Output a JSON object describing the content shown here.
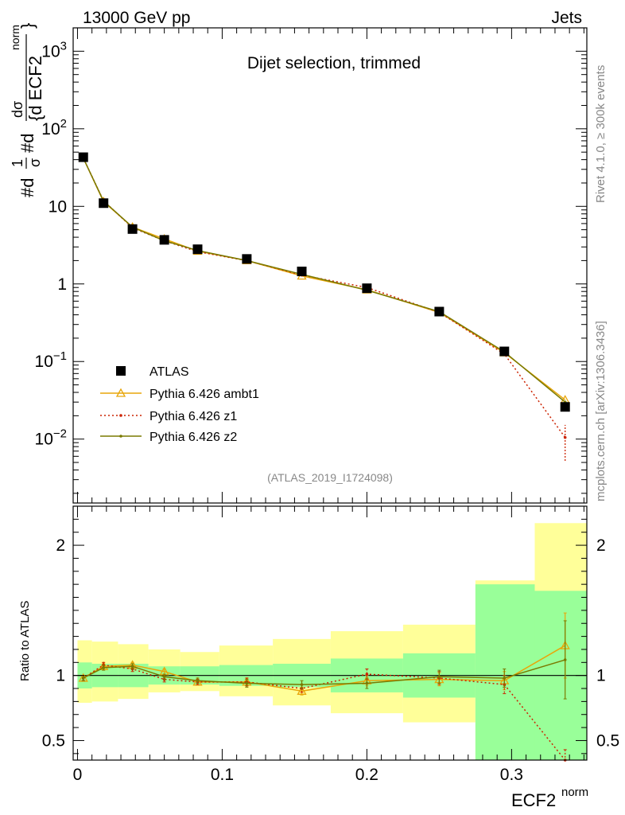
{
  "colors": {
    "atlas": "#000000",
    "ambt1": "#e8a60a",
    "z1": "#cc2200",
    "z2": "#7a7a00",
    "band_inner": "#99ff99",
    "band_outer": "#ffff99",
    "meta_text": "#888888"
  },
  "header": {
    "energy": "13000 GeV pp",
    "category": "Jets"
  },
  "side": {
    "rivet": "Rivet 4.1.0, ≥ 300k events",
    "mcplots": "mcplots.cern.ch [arXiv:1306.3436]"
  },
  "chart_data": [
    {
      "type": "line",
      "yscale": "log",
      "title": "Dijet selection, trimmed",
      "ylabel": "#d1/σ #dσ/{d ECF2norm}",
      "ylabel_parts": {
        "num_prefix": "#d",
        "one": "1",
        "sigma": "σ",
        "d_part": "#d",
        "dsigma": "dσ",
        "denom": "{d ECF2",
        "sup": "norm",
        "close": "}"
      },
      "analysis_id": "(ATLAS_2019_I1724098)",
      "ylim": [
        0.0015,
        2000
      ],
      "ytick_labels": [
        "10-2",
        "10-1",
        "1",
        "10",
        "102",
        "103"
      ],
      "ytick_label_parts": [
        {
          "base": "10",
          "exp": "−2"
        },
        {
          "base": "10",
          "exp": "−1"
        },
        {
          "base": "1",
          "exp": ""
        },
        {
          "base": "10",
          "exp": ""
        },
        {
          "base": "10",
          "exp": "2"
        },
        {
          "base": "10",
          "exp": "3"
        }
      ],
      "x": [
        0.004,
        0.018,
        0.038,
        0.06,
        0.083,
        0.117,
        0.155,
        0.2,
        0.25,
        0.295,
        0.337
      ],
      "legend": [
        "ATLAS",
        "Pythia 6.426 ambt1",
        "Pythia 6.426 z1",
        "Pythia 6.426 z2"
      ],
      "series": [
        {
          "name": "ATLAS",
          "values": [
            43,
            11,
            5.1,
            3.7,
            2.8,
            2.1,
            1.45,
            0.88,
            0.44,
            0.135,
            0.026
          ]
        },
        {
          "name": "Pythia 6.426 ambt1",
          "values": [
            42,
            11.5,
            5.4,
            3.8,
            2.65,
            2.0,
            1.27,
            0.84,
            0.43,
            0.13,
            0.032
          ]
        },
        {
          "name": "Pythia 6.426 z1",
          "values": [
            42,
            11.8,
            5.3,
            3.6,
            2.6,
            2.0,
            1.3,
            0.9,
            0.43,
            0.125,
            0.0105
          ]
        },
        {
          "name": "Pythia 6.426 z2",
          "values": [
            42,
            11.7,
            5.4,
            3.6,
            2.7,
            2.0,
            1.33,
            0.83,
            0.44,
            0.133,
            0.03
          ]
        }
      ]
    },
    {
      "type": "line",
      "ylabel": "Ratio to ATLAS",
      "xlabel": "ECF2norm",
      "xlabel_parts": {
        "base": "ECF2",
        "sup": "norm"
      },
      "xlim": [
        -0.003,
        0.352
      ],
      "ylim": [
        0.35,
        2.3
      ],
      "xticks": [
        0,
        0.1,
        0.2,
        0.3
      ],
      "xtick_labels": [
        "0",
        "0.1",
        "0.2",
        "0.3"
      ],
      "yticks": [
        0.5,
        1,
        2
      ],
      "ytick_labels": [
        "0.5",
        "1",
        "2"
      ],
      "bins": [
        0,
        0.01,
        0.028,
        0.049,
        0.071,
        0.098,
        0.135,
        0.175,
        0.225,
        0.275,
        0.316,
        0.352
      ],
      "band_inner": [
        [
          0.9,
          1.1
        ],
        [
          0.91,
          1.09
        ],
        [
          0.91,
          1.09
        ],
        [
          0.93,
          1.07
        ],
        [
          0.93,
          1.07
        ],
        [
          0.92,
          1.08
        ],
        [
          0.91,
          1.09
        ],
        [
          0.87,
          1.13
        ],
        [
          0.83,
          1.17
        ],
        [
          0.3,
          1.7
        ],
        [
          0.3,
          1.65
        ]
      ],
      "band_outer": [
        [
          0.79,
          1.27
        ],
        [
          0.8,
          1.26
        ],
        [
          0.82,
          1.24
        ],
        [
          0.87,
          1.2
        ],
        [
          0.88,
          1.18
        ],
        [
          0.84,
          1.23
        ],
        [
          0.77,
          1.28
        ],
        [
          0.71,
          1.34
        ],
        [
          0.64,
          1.39
        ],
        [
          0.3,
          1.73
        ],
        [
          0.3,
          2.17
        ]
      ],
      "x": [
        0.004,
        0.018,
        0.038,
        0.06,
        0.083,
        0.117,
        0.155,
        0.2,
        0.25,
        0.295,
        0.337
      ],
      "series": [
        {
          "name": "Pythia 6.426 ambt1",
          "values": [
            0.98,
            1.07,
            1.08,
            1.03,
            0.95,
            0.95,
            0.88,
            0.96,
            0.97,
            0.96,
            1.23
          ],
          "err": [
            0.02,
            0.02,
            0.02,
            0.02,
            0.02,
            0.03,
            0.03,
            0.04,
            0.05,
            0.07,
            0.25
          ]
        },
        {
          "name": "Pythia 6.426 z1",
          "values": [
            0.98,
            1.08,
            1.05,
            0.97,
            0.95,
            0.95,
            0.9,
            1.01,
            0.98,
            0.93,
            0.31
          ],
          "err": [
            0.02,
            0.02,
            0.02,
            0.02,
            0.02,
            0.03,
            0.03,
            0.04,
            0.05,
            0.07,
            0.12
          ]
        },
        {
          "name": "Pythia 6.426 z2",
          "values": [
            0.98,
            1.06,
            1.07,
            0.99,
            0.96,
            0.94,
            0.93,
            0.94,
            0.99,
            0.98,
            1.12
          ],
          "err": [
            0.02,
            0.02,
            0.02,
            0.02,
            0.02,
            0.03,
            0.03,
            0.04,
            0.05,
            0.07,
            0.3
          ]
        }
      ]
    }
  ]
}
